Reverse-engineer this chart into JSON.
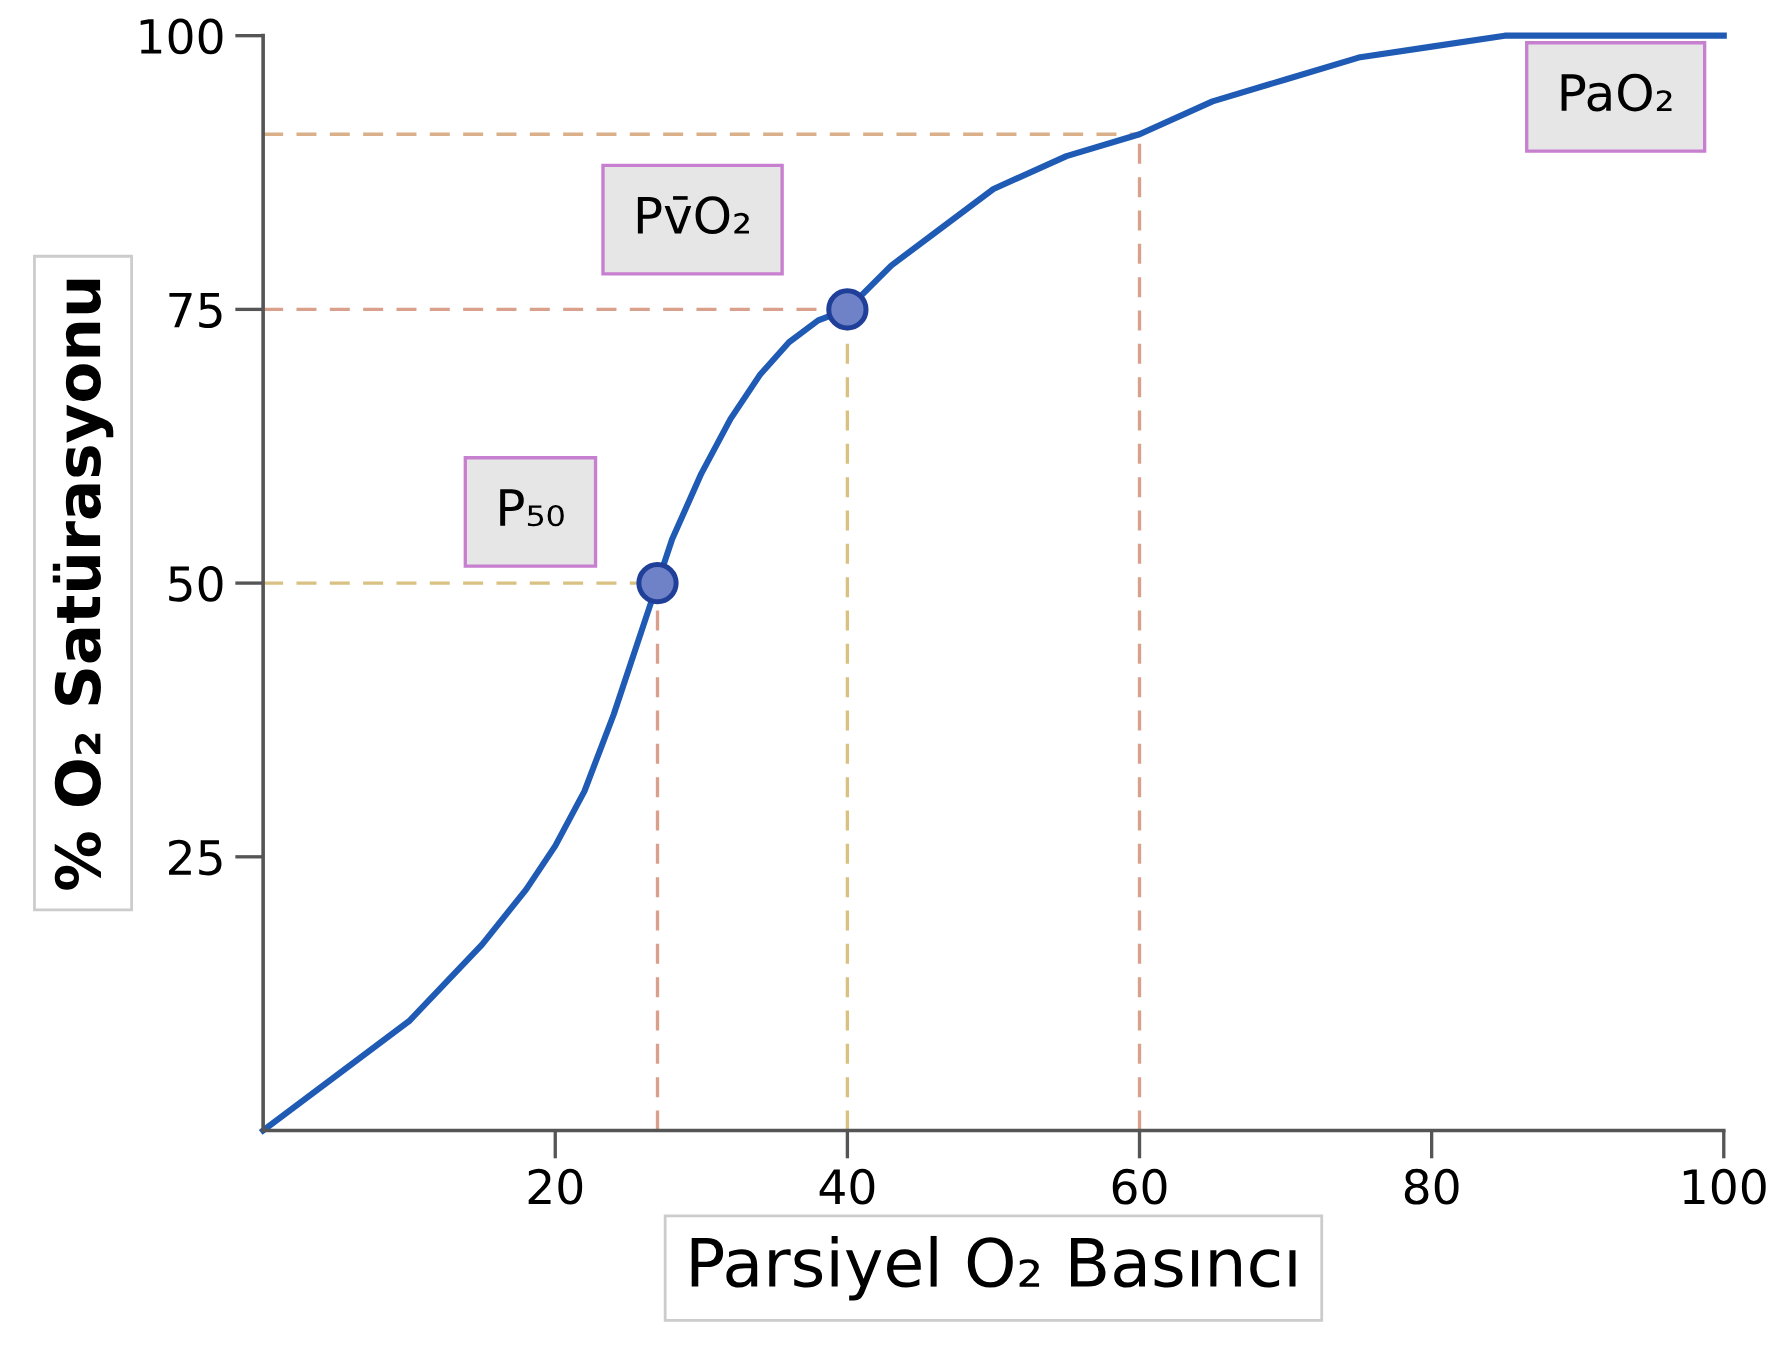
{
  "chart_data": {
    "type": "line",
    "xlabel": "Parsiyel O₂ Basıncı",
    "ylabel": "% O₂ Satürasyonu",
    "xlim": [
      0,
      100
    ],
    "ylim": [
      0,
      100
    ],
    "xticks": [
      20,
      40,
      60,
      80,
      100
    ],
    "yticks": [
      25,
      50,
      75,
      100
    ],
    "grid": false,
    "legend": false,
    "series": [
      {
        "color": "#1f5bb5",
        "x": [
          0,
          5,
          10,
          15,
          18,
          20,
          22,
          24,
          26,
          27,
          28,
          30,
          32,
          34,
          36,
          38,
          40,
          43,
          46,
          50,
          55,
          60,
          65,
          70,
          75,
          80,
          85,
          90,
          95,
          100
        ],
        "values": [
          0,
          5,
          10,
          17,
          22,
          26,
          31,
          38,
          46,
          50,
          54,
          60,
          65,
          69,
          72,
          74,
          75,
          79,
          82,
          86,
          89,
          91,
          94,
          96,
          98,
          99,
          100,
          100,
          100,
          100
        ],
        "marker": "none"
      },
      {
        "type": "scatter",
        "color": "#6f82c8",
        "x": [
          27,
          40
        ],
        "values": [
          50,
          75
        ],
        "marker": "circle"
      }
    ],
    "ref_lines": [
      {
        "axis": "y",
        "value": 50,
        "color": "#d9c183",
        "line_style": "dashed"
      },
      {
        "axis": "x",
        "value": 27,
        "color": "#d9a08c",
        "line_style": "dashed"
      },
      {
        "axis": "y",
        "value": 75,
        "color": "#d9a08c",
        "line_style": "dashed"
      },
      {
        "axis": "x",
        "value": 40,
        "color": "#d9c183",
        "line_style": "dashed"
      },
      {
        "axis": "y",
        "value": 91,
        "color": "#d9b08a",
        "line_style": "dashed"
      },
      {
        "axis": "x",
        "value": 60,
        "color": "#d9a08c",
        "line_style": "dashed"
      }
    ],
    "annotations": [
      "P₅₀",
      "Pv̄O₂",
      "PaO₂"
    ]
  }
}
